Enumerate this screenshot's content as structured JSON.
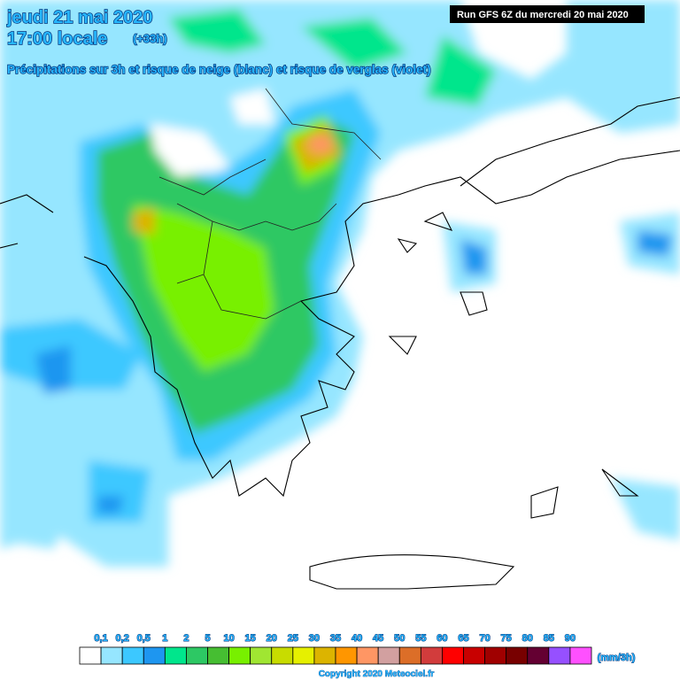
{
  "header": {
    "date": "jeudi 21 mai 2020",
    "time": "17:00 locale",
    "lead": "(+33h)",
    "subtitle": "Précipitations sur 3h et risque de neige (blanc) et risque de verglas (violet)",
    "run": "Run GFS 6Z du mercredi 20 mai 2020"
  },
  "legend": {
    "labels": [
      "0,1",
      "0,2",
      "0,5",
      "1",
      "2",
      "5",
      "10",
      "15",
      "20",
      "25",
      "30",
      "35",
      "40",
      "45",
      "50",
      "55",
      "60",
      "65",
      "70",
      "75",
      "80",
      "85",
      "90"
    ],
    "colors": [
      "#ffffff",
      "#96e6ff",
      "#3cc8ff",
      "#1e96f0",
      "#00e68c",
      "#2dc864",
      "#46be32",
      "#78f000",
      "#a0e632",
      "#c8dc00",
      "#e6f000",
      "#dcb400",
      "#ff9600",
      "#ff9664",
      "#d2a0a0",
      "#dc6e28",
      "#d23c3c",
      "#ff0000",
      "#c80000",
      "#a00000",
      "#780000",
      "#640032",
      "#9650ff",
      "#ff50ff"
    ],
    "unit": "(mm/3h)"
  },
  "footer": {
    "copyright": "Copyright 2020 Meteociel.fr"
  }
}
